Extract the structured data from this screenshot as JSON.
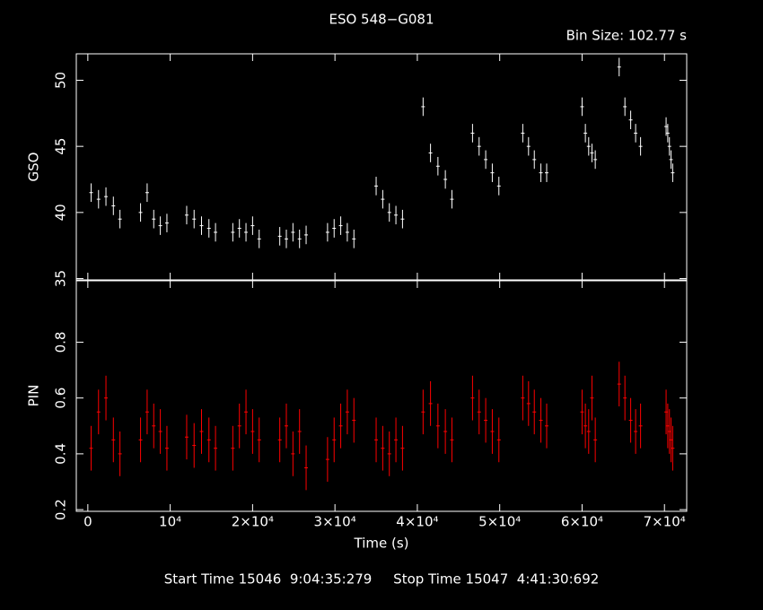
{
  "chart_data": [
    {
      "type": "scatter",
      "title": "ESO 548−G081",
      "subtitle": "Bin Size: 102.77 s",
      "ylabel": "GSO",
      "color": "#ffffff",
      "x": [
        400,
        1300,
        2200,
        3100,
        3900,
        6400,
        7200,
        8000,
        8800,
        9600,
        12000,
        12900,
        13800,
        14700,
        15500,
        17600,
        18400,
        19200,
        20000,
        20800,
        23300,
        24100,
        24900,
        25700,
        26500,
        29100,
        29900,
        30700,
        31500,
        32300,
        35000,
        35800,
        36600,
        37400,
        38200,
        40700,
        41600,
        42500,
        43400,
        44200,
        46700,
        47500,
        48300,
        49100,
        49900,
        52800,
        53500,
        54200,
        55000,
        55700,
        60000,
        60400,
        60800,
        61200,
        61600,
        64500,
        65200,
        65900,
        66500,
        67100,
        70200,
        70400,
        70600,
        70800,
        71000
      ],
      "values": [
        41.5,
        41,
        41.2,
        40.5,
        39.5,
        40,
        41.5,
        39.5,
        39,
        39.2,
        39.8,
        39.5,
        39,
        38.8,
        38.5,
        38.5,
        38.8,
        38.5,
        39,
        38,
        38.2,
        38,
        38.5,
        38,
        38.3,
        38.5,
        38.8,
        39,
        38.5,
        38,
        42,
        41,
        40,
        39.8,
        39.5,
        48,
        44.5,
        43.5,
        42.5,
        41,
        46,
        45,
        44,
        43,
        42,
        46,
        45,
        44,
        43,
        43,
        48,
        46,
        45,
        44.5,
        44,
        51,
        48,
        47,
        46,
        45,
        46.5,
        46,
        45,
        44,
        43
      ],
      "errors": [
        0.7,
        0.7,
        0.7,
        0.7,
        0.7,
        0.7,
        0.7,
        0.7,
        0.7,
        0.7,
        0.7,
        0.7,
        0.7,
        0.7,
        0.7,
        0.7,
        0.7,
        0.7,
        0.7,
        0.7,
        0.7,
        0.7,
        0.7,
        0.7,
        0.7,
        0.7,
        0.7,
        0.7,
        0.7,
        0.7,
        0.7,
        0.7,
        0.7,
        0.7,
        0.7,
        0.7,
        0.7,
        0.7,
        0.7,
        0.7,
        0.7,
        0.7,
        0.7,
        0.7,
        0.7,
        0.7,
        0.7,
        0.7,
        0.7,
        0.7,
        0.7,
        0.7,
        0.7,
        0.7,
        0.7,
        0.7,
        0.7,
        0.7,
        0.7,
        0.7,
        0.7,
        0.7,
        0.7,
        0.7,
        0.7
      ],
      "xlim": [
        -1400,
        72700
      ],
      "ylim": [
        34.9,
        52
      ],
      "yticks": [
        35,
        40,
        45,
        50
      ]
    },
    {
      "type": "scatter",
      "ylabel": "PIN",
      "xlabel": "Time (s)",
      "footer": "Start Time 15046  9:04:35:279     Stop Time 15047  4:41:30:692",
      "color": "#ff0000",
      "x": [
        400,
        1300,
        2200,
        3100,
        3900,
        6400,
        7200,
        8000,
        8800,
        9600,
        12000,
        12900,
        13800,
        14700,
        15500,
        17600,
        18400,
        19200,
        20000,
        20800,
        23300,
        24100,
        24900,
        25700,
        26500,
        29100,
        29900,
        30700,
        31500,
        32300,
        35000,
        35800,
        36600,
        37400,
        38200,
        40700,
        41600,
        42500,
        43400,
        44200,
        46700,
        47500,
        48300,
        49100,
        49900,
        52800,
        53500,
        54200,
        55000,
        55700,
        60000,
        60400,
        60800,
        61200,
        61600,
        64500,
        65200,
        65900,
        66500,
        67100,
        70200,
        70400,
        70600,
        70800,
        71000
      ],
      "values": [
        0.42,
        0.55,
        0.6,
        0.45,
        0.4,
        0.45,
        0.55,
        0.5,
        0.48,
        0.42,
        0.46,
        0.43,
        0.48,
        0.45,
        0.42,
        0.42,
        0.5,
        0.55,
        0.48,
        0.45,
        0.45,
        0.5,
        0.4,
        0.48,
        0.35,
        0.38,
        0.45,
        0.5,
        0.55,
        0.52,
        0.45,
        0.42,
        0.4,
        0.45,
        0.42,
        0.55,
        0.58,
        0.5,
        0.48,
        0.45,
        0.6,
        0.55,
        0.52,
        0.48,
        0.45,
        0.6,
        0.58,
        0.55,
        0.52,
        0.5,
        0.55,
        0.5,
        0.48,
        0.6,
        0.45,
        0.65,
        0.6,
        0.52,
        0.48,
        0.5,
        0.55,
        0.5,
        0.48,
        0.45,
        0.42
      ],
      "errors": [
        0.08,
        0.08,
        0.08,
        0.08,
        0.08,
        0.08,
        0.08,
        0.08,
        0.08,
        0.08,
        0.08,
        0.08,
        0.08,
        0.08,
        0.08,
        0.08,
        0.08,
        0.08,
        0.08,
        0.08,
        0.08,
        0.08,
        0.08,
        0.08,
        0.08,
        0.08,
        0.08,
        0.08,
        0.08,
        0.08,
        0.08,
        0.08,
        0.08,
        0.08,
        0.08,
        0.08,
        0.08,
        0.08,
        0.08,
        0.08,
        0.08,
        0.08,
        0.08,
        0.08,
        0.08,
        0.08,
        0.08,
        0.08,
        0.08,
        0.08,
        0.08,
        0.08,
        0.08,
        0.08,
        0.08,
        0.08,
        0.08,
        0.08,
        0.08,
        0.08,
        0.08,
        0.08,
        0.08,
        0.08,
        0.08
      ],
      "xlim": [
        -1400,
        72700
      ],
      "ylim": [
        0.194,
        1.02
      ],
      "yticks": [
        0.2,
        0.4,
        0.6,
        0.8
      ],
      "xticks": [
        0,
        {
          "value": 10000,
          "label": "10⁴"
        },
        {
          "value": 20000,
          "label": "2×10⁴"
        },
        {
          "value": 30000,
          "label": "3×10⁴"
        },
        {
          "value": 40000,
          "label": "4×10⁴"
        },
        {
          "value": 50000,
          "label": "5×10⁴"
        },
        {
          "value": 60000,
          "label": "6×10⁴"
        },
        {
          "value": 70000,
          "label": "7×10⁴"
        }
      ]
    }
  ]
}
